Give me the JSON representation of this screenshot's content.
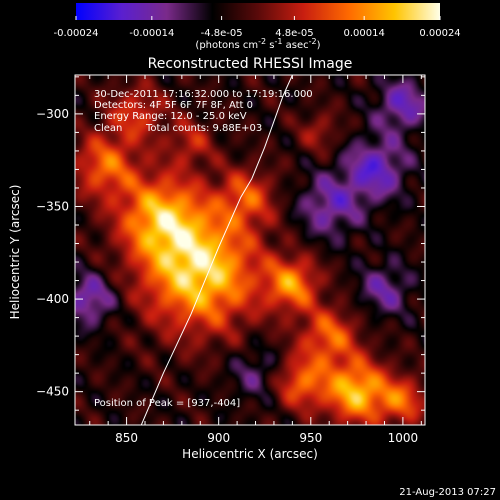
{
  "chart_data": {
    "type": "heatmap",
    "title": "Reconstructed RHESSI Image",
    "xlabel": "Heliocentric X (arcsec)",
    "ylabel": "Heliocentric Y (arcsec)",
    "xlim": [
      822,
      1012
    ],
    "ylim": [
      -468,
      -279
    ],
    "xticks": [
      850,
      900,
      950,
      1000
    ],
    "yticks": [
      -300,
      -350,
      -400,
      -450
    ],
    "colorbar": {
      "ticks": [
        "-0.00024",
        "-0.00014",
        "-4.8e-05",
        "4.8e-05",
        "0.00014",
        "0.00024"
      ],
      "tick_values": [
        -0.00024,
        -0.00014,
        -4.8e-05,
        4.8e-05,
        0.00014,
        0.00024
      ],
      "range": [
        -0.00024,
        0.00024
      ],
      "unit_parts": [
        "(photons cm",
        "-2",
        " s",
        "-1",
        " asec",
        "-2",
        ")"
      ],
      "stops": [
        "#0000ff",
        "#5a1fd0",
        "#7a2a8a",
        "#000000",
        "#5a0a0a",
        "#c81e10",
        "#ff6a00",
        "#ffc400",
        "#ffffe8"
      ]
    },
    "annotations": {
      "time_range": "30-Dec-2011 17:16:32.000 to 17:19:16.000",
      "detectors": "Detectors: 4F 5F 6F 7F 8F, Att 0",
      "energy_range": "Energy Range: 12.0 - 25.0 keV",
      "clean_label": "Clean",
      "total_counts": "Total counts: 9.88E+03",
      "peak_position": "Position of Peak = [937,-404]"
    },
    "peak": [
      937,
      -404
    ],
    "limb_curve_x": [
      858,
      870,
      885,
      900,
      912,
      918,
      925,
      935,
      940
    ],
    "limb_curve_y": [
      -468,
      -440,
      -408,
      -372,
      -345,
      -335,
      -318,
      -290,
      -279
    ],
    "emission_sources": [
      {
        "x": 890,
        "y": -385,
        "amp": 1.0,
        "sigma": 22
      },
      {
        "x": 868,
        "y": -355,
        "amp": 0.75,
        "sigma": 16
      },
      {
        "x": 838,
        "y": -328,
        "amp": 0.6,
        "sigma": 12
      },
      {
        "x": 855,
        "y": -300,
        "amp": 0.45,
        "sigma": 11
      },
      {
        "x": 885,
        "y": -315,
        "amp": 0.35,
        "sigma": 9
      },
      {
        "x": 915,
        "y": -345,
        "amp": 0.5,
        "sigma": 11
      },
      {
        "x": 940,
        "y": -392,
        "amp": 0.7,
        "sigma": 10
      },
      {
        "x": 960,
        "y": -420,
        "amp": 0.6,
        "sigma": 11
      },
      {
        "x": 975,
        "y": -450,
        "amp": 0.9,
        "sigma": 12
      },
      {
        "x": 945,
        "y": -445,
        "amp": 0.6,
        "sigma": 10
      },
      {
        "x": 1000,
        "y": -455,
        "amp": 0.55,
        "sigma": 9
      },
      {
        "x": 955,
        "y": -310,
        "amp": 0.3,
        "sigma": 8
      },
      {
        "x": 985,
        "y": -330,
        "amp": -0.55,
        "sigma": 12
      },
      {
        "x": 960,
        "y": -350,
        "amp": -0.45,
        "sigma": 12
      },
      {
        "x": 1000,
        "y": -295,
        "amp": -0.5,
        "sigma": 10
      },
      {
        "x": 830,
        "y": -400,
        "amp": -0.5,
        "sigma": 10
      },
      {
        "x": 920,
        "y": -440,
        "amp": -0.3,
        "sigma": 10
      },
      {
        "x": 990,
        "y": -395,
        "amp": -0.4,
        "sigma": 10
      }
    ]
  },
  "footer": {
    "timestamp": "21-Aug-2013 07:27"
  }
}
